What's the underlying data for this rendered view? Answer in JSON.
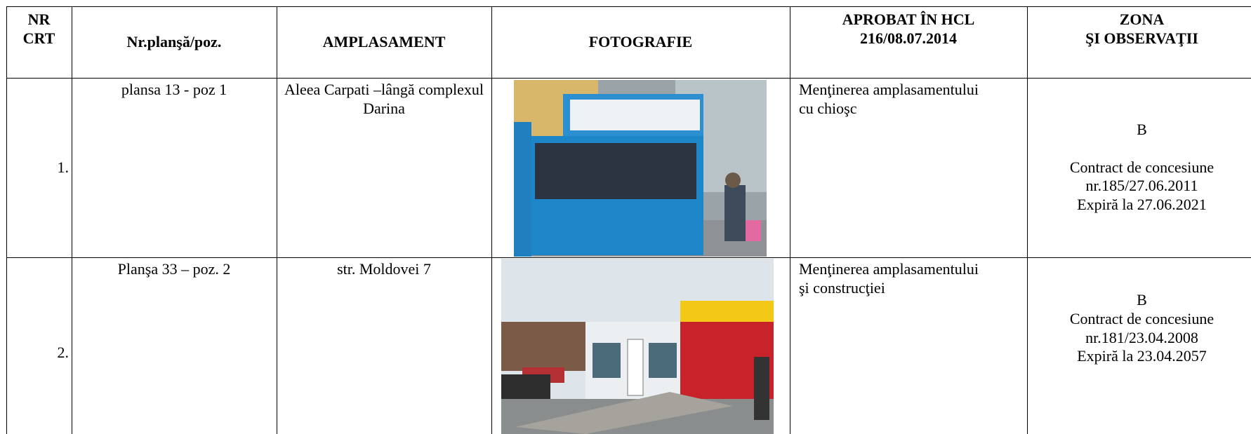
{
  "table": {
    "header": [
      [
        "NR",
        "CRT"
      ],
      [
        "Nr.planşă/poz."
      ],
      [
        "AMPLASAMENT"
      ],
      [
        "FOTOGRAFIE"
      ],
      [
        "APROBAT ÎN HCL",
        "216/08.07.2014"
      ],
      [
        "ZONA",
        "ŞI OBSERVAŢII"
      ]
    ],
    "rows": [
      {
        "nr": "1.",
        "plansa": "plansa 13 - poz 1",
        "amplasament": "Aleea Carpati –lângă complexul Darina",
        "aprobat": "Menţinerea amplasamentului cu chioşc",
        "zona": [
          "B",
          "",
          "Contract de concesiune",
          "nr.185/27.06.2011",
          "Expiră la 27.06.2021"
        ]
      },
      {
        "nr": "2.",
        "plansa": "Planşa 33 – poz. 2",
        "amplasament": "str. Moldovei 7",
        "aprobat": "Menţinerea amplasamentului şi construcţiei",
        "zona": [
          "B",
          "Contract de concesiune",
          "nr.181/23.04.2008",
          "Expiră la 23.04.2057"
        ]
      }
    ]
  }
}
